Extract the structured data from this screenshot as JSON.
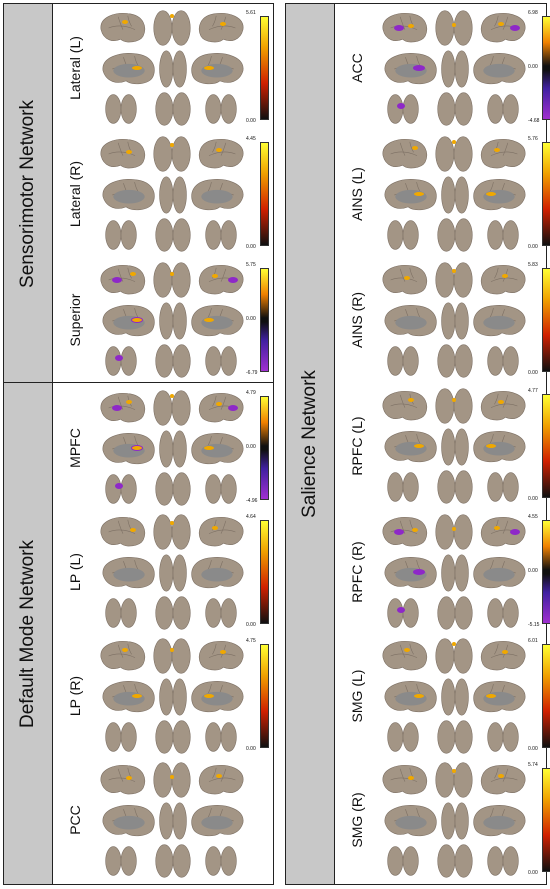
{
  "colors": {
    "cortex": "#a39585",
    "cortex_dark": "#7d7064",
    "medial_wall": "#8a8a8a",
    "strip_gray": "#c8c8c8",
    "positive_map": "#f0a800",
    "negative_map": "#8e28c8"
  },
  "panels": [
    {
      "networks": [
        {
          "name": "Sensorimotor Network",
          "rows": [
            {
              "label": "Lateral (L)",
              "max": "5.61",
              "min": "0.00",
              "diverging": false,
              "mid": ""
            },
            {
              "label": "Lateral (R)",
              "max": "4.45",
              "min": "0.00",
              "diverging": false,
              "mid": ""
            },
            {
              "label": "Superior",
              "max": "5.75",
              "min": "-6.79",
              "diverging": true,
              "mid": "0.00"
            }
          ]
        },
        {
          "name": "Default Mode Network",
          "rows": [
            {
              "label": "MPFC",
              "max": "4.79",
              "min": "-4.96",
              "diverging": true,
              "mid": "0.00"
            },
            {
              "label": "LP (L)",
              "max": "4.64",
              "min": "0.00",
              "diverging": false,
              "mid": ""
            },
            {
              "label": "LP (R)",
              "max": "4.75",
              "min": "0.00",
              "diverging": false,
              "mid": ""
            },
            {
              "label": "PCC",
              "max": "",
              "min": "",
              "diverging": false,
              "mid": "",
              "nobar": true
            }
          ]
        }
      ]
    },
    {
      "networks": [
        {
          "name": "Salience Network",
          "rows": [
            {
              "label": "ACC",
              "max": "6.98",
              "min": "-4.68",
              "diverging": true,
              "mid": "0.00"
            },
            {
              "label": "AINS (L)",
              "max": "5.76",
              "min": "0.00",
              "diverging": false,
              "mid": ""
            },
            {
              "label": "AINS (R)",
              "max": "5.83",
              "min": "0.00",
              "diverging": false,
              "mid": ""
            },
            {
              "label": "RPFC (L)",
              "max": "4.77",
              "min": "0.00",
              "diverging": false,
              "mid": ""
            },
            {
              "label": "RPFC (R)",
              "max": "4.55",
              "min": "-5.15",
              "diverging": true,
              "mid": "0.00"
            },
            {
              "label": "SMG (L)",
              "max": "6.01",
              "min": "0.00",
              "diverging": false,
              "mid": ""
            },
            {
              "label": "SMG (R)",
              "max": "5.74",
              "min": "0.00",
              "diverging": false,
              "mid": ""
            }
          ]
        }
      ]
    }
  ]
}
